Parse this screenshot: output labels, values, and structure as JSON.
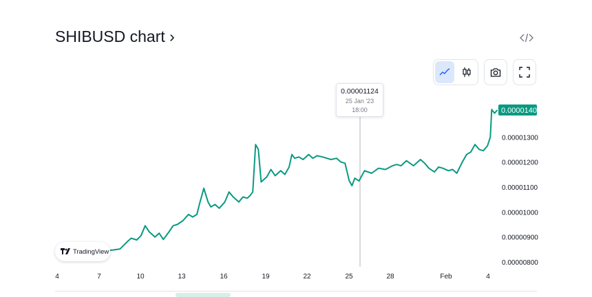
{
  "header": {
    "title": "SHIBUSD chart ›",
    "embed_icon": "code-embed-icon"
  },
  "toolbar": {
    "buttons": [
      {
        "name": "line-chart-button",
        "icon": "line-chart-icon",
        "active": true
      },
      {
        "name": "candles-chart-button",
        "icon": "candlestick-icon",
        "active": false
      },
      {
        "name": "screenshot-button",
        "icon": "camera-icon",
        "active": false
      },
      {
        "name": "fullscreen-button",
        "icon": "fullscreen-icon",
        "active": false
      }
    ]
  },
  "tooltip": {
    "price": "0.00001124",
    "date": "25 Jan '23",
    "time": "18:00"
  },
  "logo": {
    "label": "TradingView"
  },
  "colors": {
    "line": "#089981",
    "badge": "#089981",
    "crosshair": "#b2b5be"
  },
  "chart_data": {
    "type": "line",
    "symbol": "SHIBUSD",
    "last_price_label": "0.00001408",
    "x_ticks": [
      "4",
      "7",
      "10",
      "13",
      "16",
      "19",
      "22",
      "25",
      "28",
      "Feb",
      "4"
    ],
    "y_ticks": [
      "0.00001300",
      "0.00001200",
      "0.00001100",
      "0.00001000",
      "0.00000900",
      "0.00000800"
    ],
    "ylim": [
      8e-06,
      1.41e-05
    ],
    "crosshair_x_day": 25.75,
    "series": [
      {
        "x_days": [
          5.2,
          6.0,
          7.0,
          7.5,
          8.0,
          8.5,
          9.0,
          9.3,
          9.7,
          10.0,
          10.3,
          10.6,
          11.0,
          11.3,
          11.6,
          12.0,
          12.3,
          12.6,
          13.0,
          13.4,
          13.7,
          14.0,
          14.2,
          14.5,
          14.8,
          15.0,
          15.3,
          15.6,
          16.0,
          16.3,
          16.6,
          17.0,
          17.3,
          17.6,
          17.8,
          18.0,
          18.2,
          18.4,
          18.6,
          18.8,
          19.0,
          19.3,
          19.6,
          20.0,
          20.3,
          20.6,
          20.8,
          21.0,
          21.3,
          21.6,
          22.0,
          22.3,
          22.6,
          23.0,
          23.3,
          23.6,
          24.0,
          24.3,
          24.6,
          24.9,
          25.1,
          25.3,
          25.6,
          26.0,
          26.5,
          27.0,
          27.5,
          28.0,
          28.3,
          28.6,
          29.0,
          29.5,
          30.0,
          30.3,
          30.6,
          31.0,
          31.3,
          31.6,
          32.0,
          32.3,
          32.6,
          33.0,
          33.3,
          33.6,
          33.9,
          34.2,
          34.5,
          34.8,
          35.0,
          35.1,
          35.3,
          35.5
        ],
        "values": [
          8.75e-06,
          8.65e-06,
          8.6e-06,
          8.45e-06,
          8.48e-06,
          8.52e-06,
          8.8e-06,
          8.95e-06,
          8.88e-06,
          9.05e-06,
          9.45e-06,
          9.2e-06,
          9e-06,
          9.15e-06,
          8.9e-06,
          9.2e-06,
          9.45e-06,
          9.5e-06,
          9.65e-06,
          9.9e-06,
          9.8e-06,
          9.9e-06,
          1.035e-05,
          1.095e-05,
          1.04e-05,
          1.02e-05,
          1.03e-05,
          1.015e-05,
          1.04e-05,
          1.08e-05,
          1.06e-05,
          1.04e-05,
          1.06e-05,
          1.055e-05,
          1.065e-05,
          1.08e-05,
          1.27e-05,
          1.25e-05,
          1.12e-05,
          1.13e-05,
          1.14e-05,
          1.17e-05,
          1.145e-05,
          1.165e-05,
          1.15e-05,
          1.18e-05,
          1.23e-05,
          1.215e-05,
          1.22e-05,
          1.21e-05,
          1.23e-05,
          1.215e-05,
          1.225e-05,
          1.22e-05,
          1.215e-05,
          1.21e-05,
          1.215e-05,
          1.2e-05,
          1.195e-05,
          1.125e-05,
          1.105e-05,
          1.135e-05,
          1.124e-05,
          1.165e-05,
          1.155e-05,
          1.175e-05,
          1.17e-05,
          1.185e-05,
          1.19e-05,
          1.185e-05,
          1.205e-05,
          1.185e-05,
          1.21e-05,
          1.195e-05,
          1.175e-05,
          1.16e-05,
          1.18e-05,
          1.175e-05,
          1.165e-05,
          1.17e-05,
          1.155e-05,
          1.2e-05,
          1.23e-05,
          1.24e-05,
          1.27e-05,
          1.25e-05,
          1.245e-05,
          1.265e-05,
          1.3e-05,
          1.41e-05,
          1.395e-05,
          1.408e-05
        ]
      }
    ]
  }
}
